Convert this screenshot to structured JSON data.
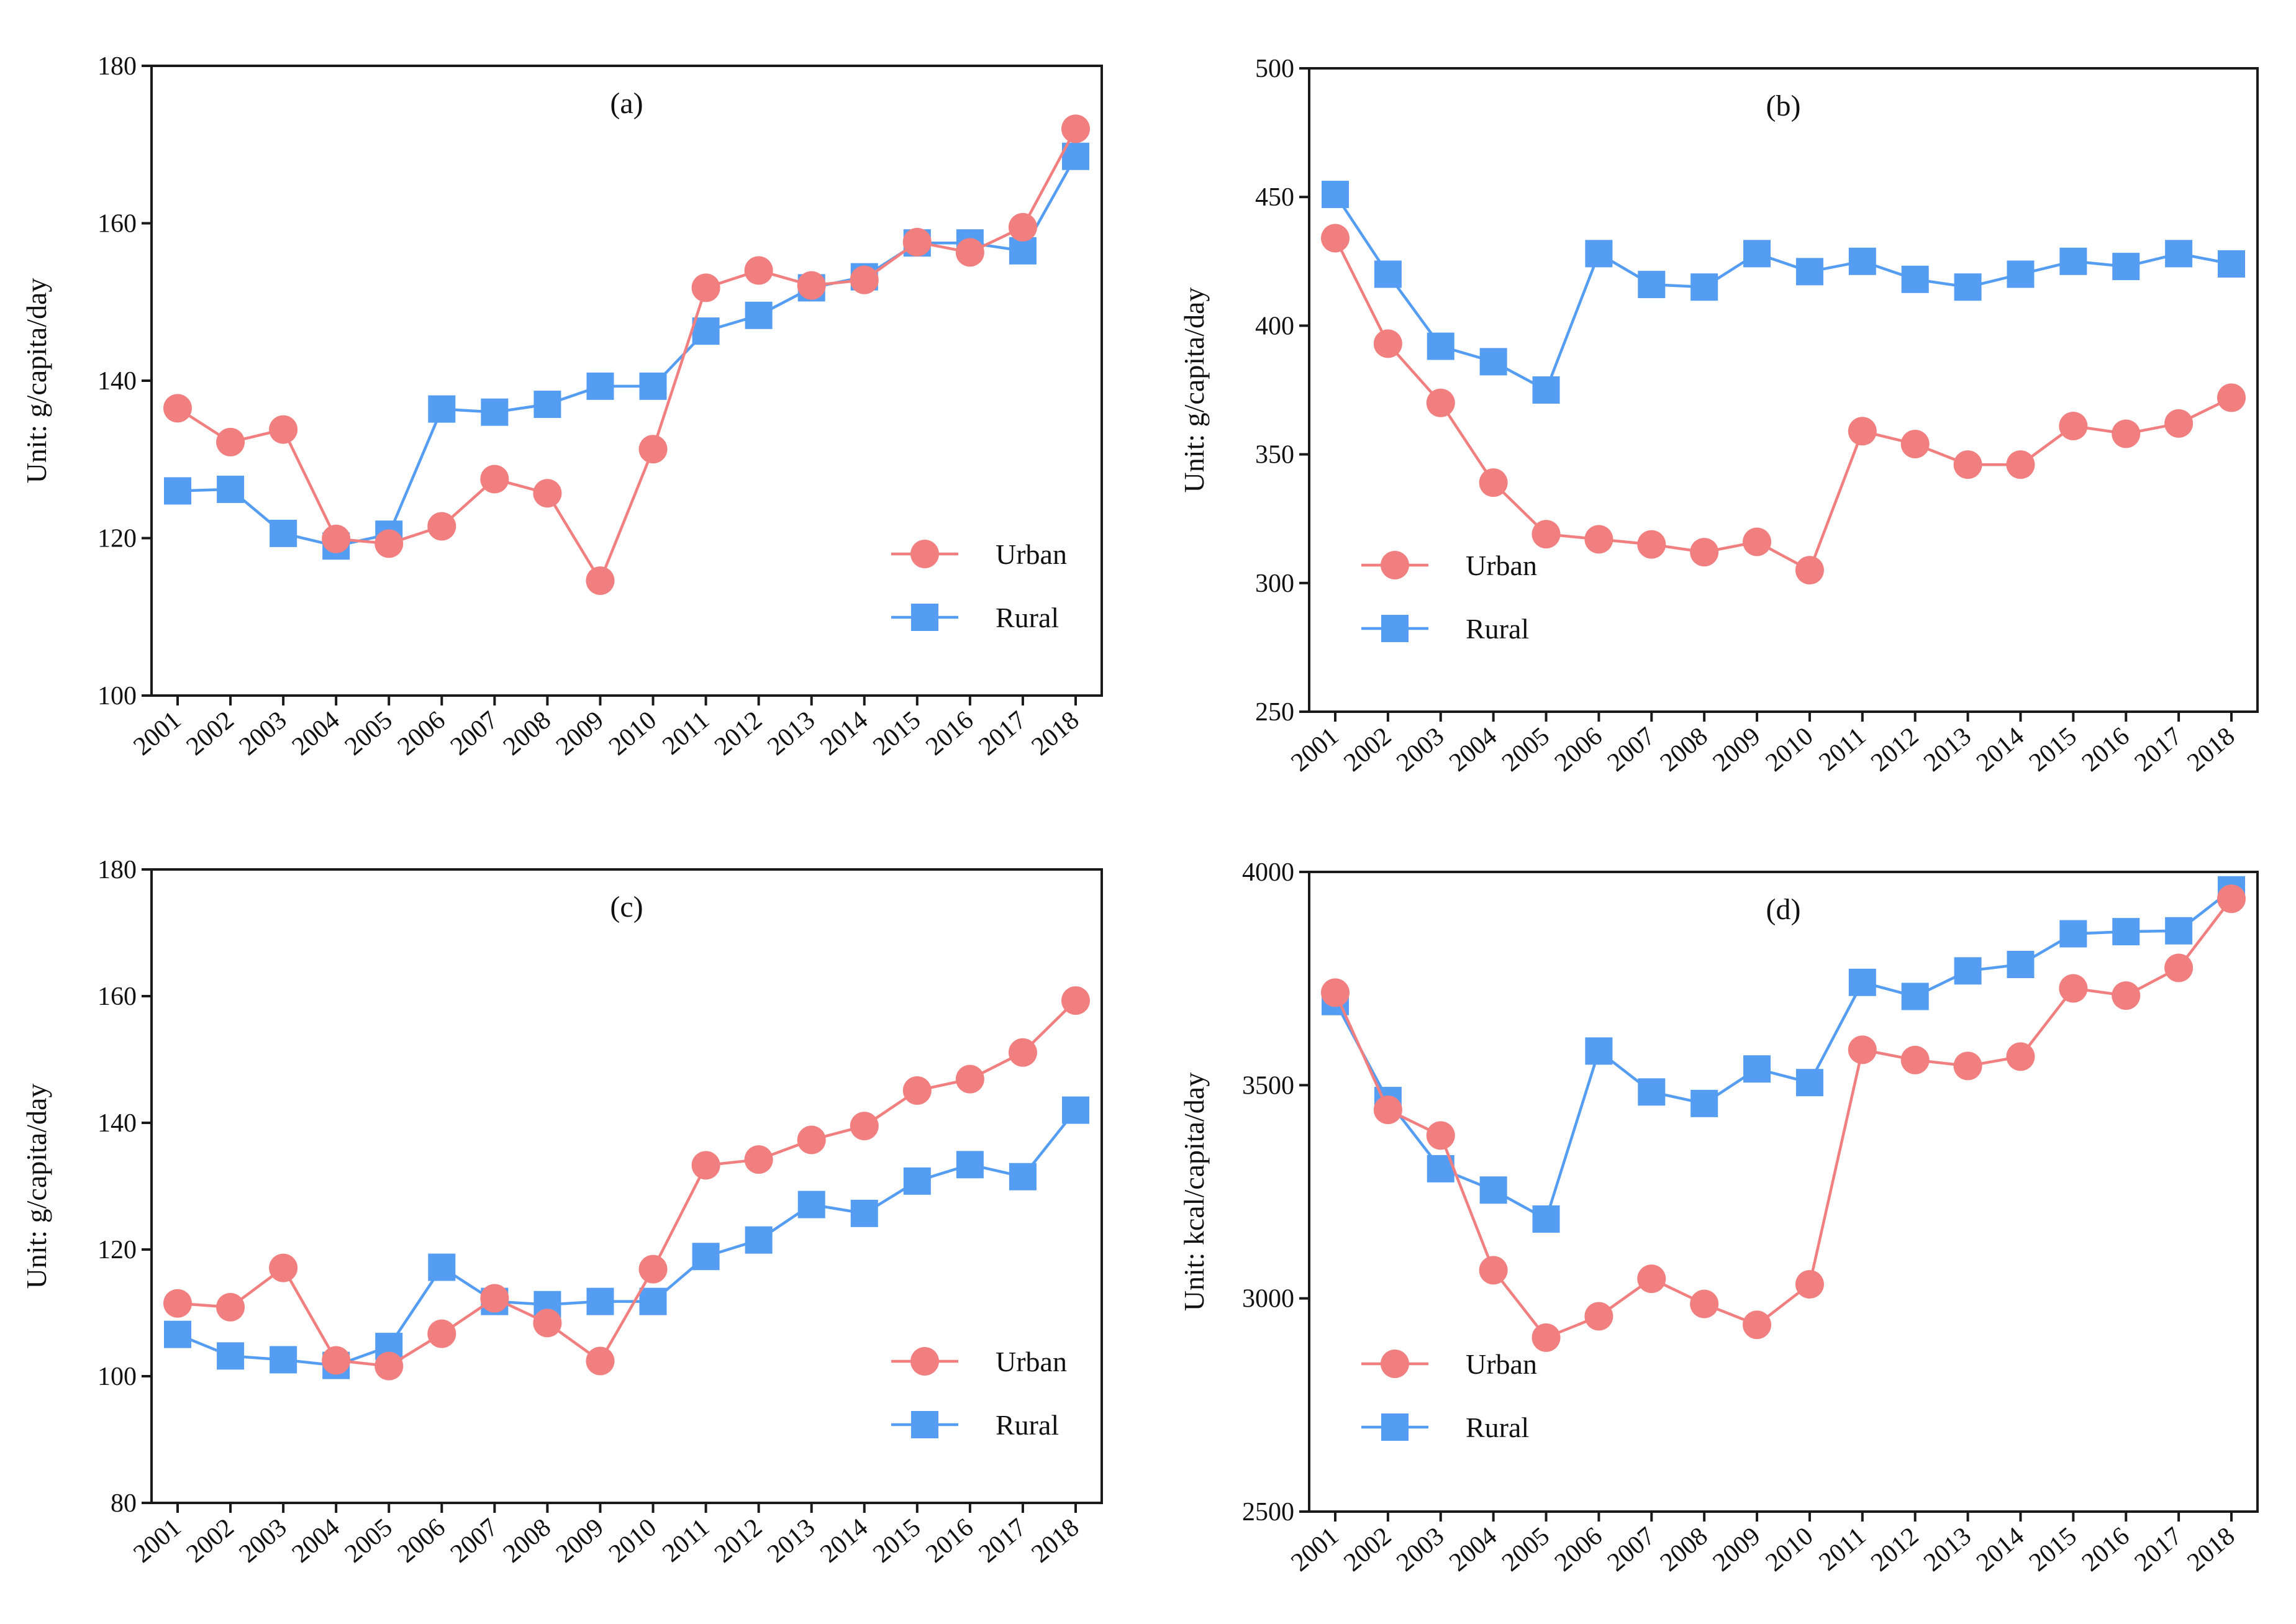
{
  "colors": {
    "urban": "#f27f7f",
    "rural": "#559df2",
    "axis": "#1a1a1a"
  },
  "chart_data": [
    {
      "type": "line",
      "title": "(a)",
      "xlabel": "",
      "ylabel": "Unit: g/capita/day",
      "ylim": [
        100,
        180
      ],
      "yticks": [
        100,
        120,
        140,
        160,
        180
      ],
      "legend_position": "bottom-right",
      "x": [
        "2001",
        "2002",
        "2003",
        "2004",
        "2005",
        "2006",
        "2007",
        "2008",
        "2009",
        "2010",
        "2011",
        "2012",
        "2013",
        "2014",
        "2015",
        "2016",
        "2017",
        "2018"
      ],
      "series": [
        {
          "name": "Urban",
          "marker": "circle",
          "values": [
            136.5,
            132.2,
            133.8,
            119.9,
            119.3,
            121.5,
            127.5,
            125.7,
            114.6,
            131.3,
            151.8,
            154.0,
            152.1,
            152.8,
            157.6,
            156.3,
            159.5,
            172.0
          ]
        },
        {
          "name": "Rural",
          "marker": "square",
          "values": [
            126.0,
            126.2,
            120.6,
            119.0,
            120.5,
            136.4,
            136.0,
            137.0,
            139.3,
            139.3,
            146.3,
            148.3,
            151.8,
            153.2,
            157.5,
            157.5,
            156.5,
            168.5
          ]
        }
      ]
    },
    {
      "type": "line",
      "title": "(b)",
      "xlabel": "",
      "ylabel": "Unit: g/capita/day",
      "ylim": [
        250,
        500
      ],
      "yticks": [
        250,
        300,
        350,
        400,
        450,
        500
      ],
      "legend_position": "bottom-left",
      "x": [
        "2001",
        "2002",
        "2003",
        "2004",
        "2005",
        "2006",
        "2007",
        "2008",
        "2009",
        "2010",
        "2011",
        "2012",
        "2013",
        "2014",
        "2015",
        "2016",
        "2017",
        "2018"
      ],
      "series": [
        {
          "name": "Urban",
          "marker": "circle",
          "values": [
            434,
            393,
            370,
            339,
            319,
            317,
            315,
            312,
            316,
            305,
            359,
            354,
            346,
            346,
            361,
            358,
            362,
            372
          ]
        },
        {
          "name": "Rural",
          "marker": "square",
          "values": [
            451,
            420,
            392,
            386,
            375,
            428,
            416,
            415,
            428,
            421,
            425,
            418,
            415,
            420,
            425,
            423,
            428,
            424
          ]
        }
      ]
    },
    {
      "type": "line",
      "title": "(c)",
      "xlabel": "",
      "ylabel": "Unit: g/capita/day",
      "ylim": [
        80,
        180
      ],
      "yticks": [
        80,
        100,
        120,
        140,
        160,
        180
      ],
      "legend_position": "bottom-right",
      "x": [
        "2001",
        "2002",
        "2003",
        "2004",
        "2005",
        "2006",
        "2007",
        "2008",
        "2009",
        "2010",
        "2011",
        "2012",
        "2013",
        "2014",
        "2015",
        "2016",
        "2017",
        "2018"
      ],
      "series": [
        {
          "name": "Urban",
          "marker": "circle",
          "values": [
            111.5,
            110.9,
            117.1,
            102.5,
            101.6,
            106.7,
            112.3,
            108.4,
            102.4,
            116.9,
            133.3,
            134.2,
            137.3,
            139.5,
            145.1,
            146.9,
            151.1,
            159.3
          ]
        },
        {
          "name": "Rural",
          "marker": "square",
          "values": [
            106.6,
            103.2,
            102.6,
            101.7,
            104.7,
            117.2,
            111.8,
            111.3,
            111.8,
            111.8,
            118.9,
            121.5,
            127.1,
            125.7,
            130.8,
            133.4,
            131.5,
            142.0
          ]
        }
      ]
    },
    {
      "type": "line",
      "title": "(d)",
      "xlabel": "",
      "ylabel": "Unit: kcal/capita/day",
      "ylim": [
        2500,
        4000
      ],
      "yticks": [
        2500,
        3000,
        3500,
        4000
      ],
      "legend_position": "bottom-left",
      "x": [
        "2001",
        "2002",
        "2003",
        "2004",
        "2005",
        "2006",
        "2007",
        "2008",
        "2009",
        "2010",
        "2011",
        "2012",
        "2013",
        "2014",
        "2015",
        "2016",
        "2017",
        "2018"
      ],
      "series": [
        {
          "name": "Urban",
          "marker": "circle",
          "values": [
            3717,
            3442,
            3382,
            3066,
            2908,
            2958,
            3046,
            2987,
            2938,
            3033,
            3583,
            3559,
            3545,
            3567,
            3727,
            3710,
            3775,
            3937
          ]
        },
        {
          "name": "Rural",
          "marker": "square",
          "values": [
            3696,
            3464,
            3304,
            3254,
            3186,
            3580,
            3484,
            3457,
            3538,
            3506,
            3741,
            3708,
            3768,
            3783,
            3855,
            3860,
            3862,
            3958
          ]
        }
      ]
    }
  ]
}
